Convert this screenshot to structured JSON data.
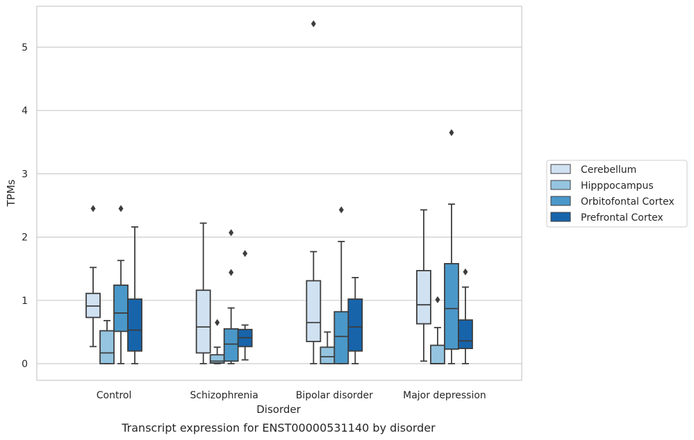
{
  "chart_data": {
    "type": "box",
    "title": "",
    "caption": "Transcript expression for ENST00000531140 by disorder",
    "xlabel": "Disorder",
    "ylabel": "TPMs",
    "ylim": [
      -0.26,
      5.65
    ],
    "yticks": [
      "0",
      "1",
      "2",
      "3",
      "4",
      "5"
    ],
    "grid": "horizontal",
    "legend_position": "right",
    "categories": [
      "Control",
      "Schizophrenia",
      "Bipolar disorder",
      "Major depression"
    ],
    "series": [
      {
        "name": "Cerebellum",
        "color": "#d0e1f2",
        "boxes": [
          {
            "whislo": 0.27,
            "q1": 0.73,
            "med": 0.91,
            "q3": 1.11,
            "whishi": 1.52,
            "fliers": [
              2.45
            ]
          },
          {
            "whislo": 0.0,
            "q1": 0.17,
            "med": 0.58,
            "q3": 1.16,
            "whishi": 2.22,
            "fliers": []
          },
          {
            "whislo": 0.0,
            "q1": 0.35,
            "med": 0.65,
            "q3": 1.31,
            "whishi": 1.77,
            "fliers": [
              5.37
            ]
          },
          {
            "whislo": 0.04,
            "q1": 0.63,
            "med": 0.93,
            "q3": 1.47,
            "whishi": 2.43,
            "fliers": []
          }
        ]
      },
      {
        "name": "Hipppocampus",
        "color": "#94c4df",
        "boxes": [
          {
            "whislo": 0.0,
            "q1": 0.0,
            "med": 0.17,
            "q3": 0.52,
            "whishi": 0.68,
            "fliers": []
          },
          {
            "whislo": 0.0,
            "q1": 0.01,
            "med": 0.04,
            "q3": 0.14,
            "whishi": 0.26,
            "fliers": [
              0.65
            ]
          },
          {
            "whislo": 0.0,
            "q1": 0.0,
            "med": 0.11,
            "q3": 0.26,
            "whishi": 0.5,
            "fliers": []
          },
          {
            "whislo": 0.0,
            "q1": 0.0,
            "med": 0.0,
            "q3": 0.29,
            "whishi": 0.57,
            "fliers": [
              1.01
            ]
          }
        ]
      },
      {
        "name": "Orbitofontal Cortex",
        "color": "#4a98c9",
        "boxes": [
          {
            "whislo": 0.0,
            "q1": 0.51,
            "med": 0.8,
            "q3": 1.24,
            "whishi": 1.63,
            "fliers": [
              2.45
            ]
          },
          {
            "whislo": 0.0,
            "q1": 0.04,
            "med": 0.31,
            "q3": 0.55,
            "whishi": 0.88,
            "fliers": [
              1.44,
              2.07
            ]
          },
          {
            "whislo": 0.0,
            "q1": 0.0,
            "med": 0.43,
            "q3": 0.82,
            "whishi": 1.93,
            "fliers": [
              2.43
            ]
          },
          {
            "whislo": 0.0,
            "q1": 0.23,
            "med": 0.87,
            "q3": 1.58,
            "whishi": 2.52,
            "fliers": [
              3.65
            ]
          }
        ]
      },
      {
        "name": "Prefrontal Cortex",
        "color": "#1764ab",
        "boxes": [
          {
            "whislo": 0.0,
            "q1": 0.2,
            "med": 0.53,
            "q3": 1.02,
            "whishi": 2.16,
            "fliers": []
          },
          {
            "whislo": 0.06,
            "q1": 0.27,
            "med": 0.41,
            "q3": 0.54,
            "whishi": 0.61,
            "fliers": [
              1.74
            ]
          },
          {
            "whislo": 0.0,
            "q1": 0.2,
            "med": 0.58,
            "q3": 1.02,
            "whishi": 1.36,
            "fliers": []
          },
          {
            "whislo": 0.0,
            "q1": 0.24,
            "med": 0.36,
            "q3": 0.69,
            "whishi": 1.21,
            "fliers": [
              1.45
            ]
          }
        ]
      }
    ]
  }
}
